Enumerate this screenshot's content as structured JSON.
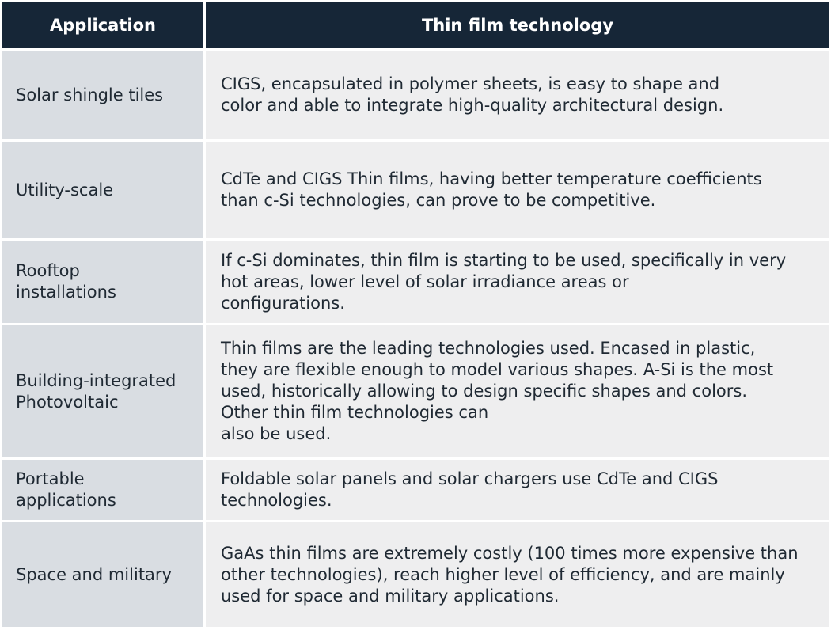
{
  "header": {
    "application": "Application",
    "technology": "Thin film technology"
  },
  "rows": [
    {
      "application": "Solar shingle tiles",
      "technology": "CIGS, encapsulated in polymer sheets, is easy to shape and\ncolor and able to integrate high-quality architectural design."
    },
    {
      "application": "Utility-scale",
      "technology": "CdTe and CIGS Thin films, having better temperature coefficients\nthan c-Si technologies, can prove to be competitive."
    },
    {
      "application": "Rooftop\ninstallations",
      "technology": "If c-Si dominates, thin film is starting to be used, specifically in very\nhot areas, lower level of solar irradiance areas or\nconfigurations."
    },
    {
      "application": "Building-integrated\nPhotovoltaic",
      "technology": "Thin films are the leading technologies used. Encased in plastic,\nthey are flexible enough to model various shapes. A-Si is the most\nused, historically allowing to design specific shapes and colors.\nOther thin film technologies can\nalso be used."
    },
    {
      "application": "Portable\napplications",
      "technology": "Foldable solar panels and solar chargers use CdTe and CIGS\ntechnologies."
    },
    {
      "application": "Space and military",
      "technology": "GaAs thin films are extremely costly (100 times more expensive than\nother technologies), reach higher level of efficiency, and are mainly\nused for space and military applications."
    }
  ]
}
